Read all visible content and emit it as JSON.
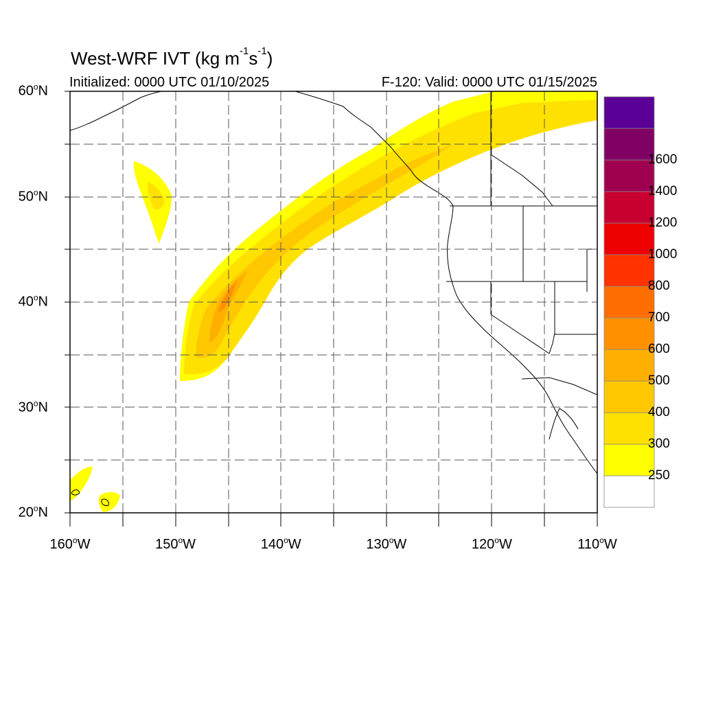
{
  "title": {
    "main": "West-WRF IVT (kg m",
    "exp1": "-1",
    "mid": "s",
    "exp2": "-1",
    "end": ")"
  },
  "subtitle_left": "Initialized: 0000 UTC 01/10/2025",
  "subtitle_right": "F-120: Valid: 0000 UTC 01/15/2025",
  "map_extent": {
    "lon_min": -160,
    "lon_max": -110,
    "lat_min": 20,
    "lat_max": 60
  },
  "lat_labels": [
    {
      "value": 60,
      "text": "60",
      "suffix": "N"
    },
    {
      "value": 50,
      "text": "50",
      "suffix": "N"
    },
    {
      "value": 40,
      "text": "40",
      "suffix": "N"
    },
    {
      "value": 30,
      "text": "30",
      "suffix": "N"
    },
    {
      "value": 20,
      "text": "20",
      "suffix": "N"
    }
  ],
  "lon_labels": [
    {
      "value": -160,
      "text": "160",
      "suffix": "W"
    },
    {
      "value": -150,
      "text": "150",
      "suffix": "W"
    },
    {
      "value": -140,
      "text": "140",
      "suffix": "W"
    },
    {
      "value": -130,
      "text": "130",
      "suffix": "W"
    },
    {
      "value": -120,
      "text": "120",
      "suffix": "W"
    },
    {
      "value": -110,
      "text": "110",
      "suffix": "W"
    }
  ],
  "colorbar": {
    "labels": [
      "250",
      "300",
      "400",
      "500",
      "600",
      "700",
      "800",
      "1000",
      "1200",
      "1400",
      "1600"
    ],
    "colors": [
      "#ffffff",
      "#ffff00",
      "#ffe100",
      "#ffc800",
      "#ffaf00",
      "#ff9100",
      "#ff6e00",
      "#ff3200",
      "#ee0000",
      "#c80032",
      "#a00050",
      "#800064",
      "#5a0096"
    ]
  },
  "land_color": "#ffffff",
  "chart_data": {
    "type": "heatmap",
    "variable": "IVT",
    "units": "kg m-1 s-1",
    "levels": [
      250,
      300,
      400,
      500,
      600,
      700,
      800,
      1000,
      1200,
      1400,
      1600
    ],
    "features": [
      {
        "feature": "atmospheric river",
        "axis_lon": [
          -146,
          -145,
          -142,
          -138,
          -134,
          -130,
          -126,
          -120,
          -115,
          -110
        ],
        "axis_lat": [
          36,
          40,
          43,
          46,
          49,
          51.5,
          53.5,
          55.5,
          57,
          58
        ],
        "peak_ivt": 600
      },
      {
        "feature": "IVT patch",
        "center_lon": -152,
        "center_lat": 50.5,
        "peak_ivt": 300
      },
      {
        "feature": "IVT patch (Hawaii)",
        "center_lon": -157,
        "center_lat": 21.5,
        "peak_ivt": 300
      }
    ]
  }
}
